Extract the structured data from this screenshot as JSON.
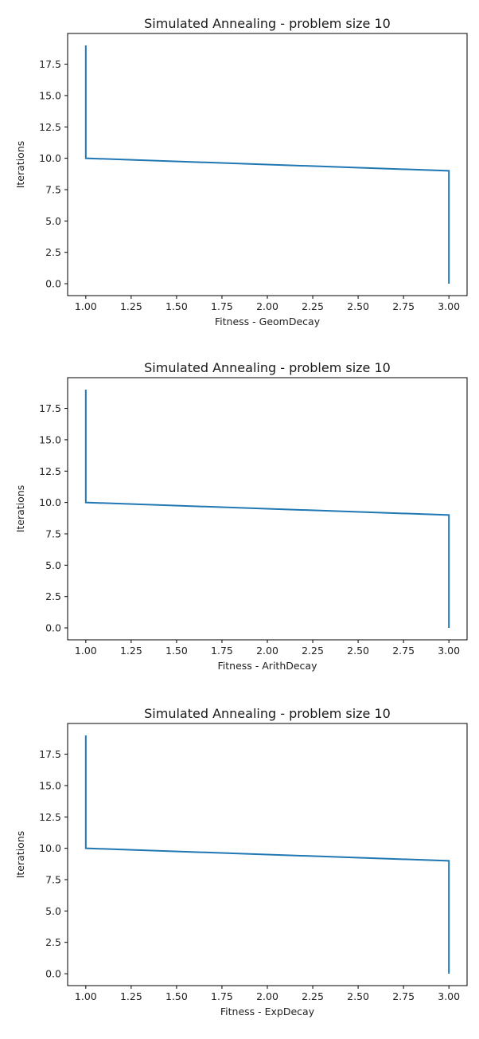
{
  "chart_data": [
    {
      "type": "line",
      "title": "Simulated Annealing - problem size 10",
      "xlabel": "Fitness - GeomDecay",
      "ylabel": "Iterations",
      "xlim": [
        0.9,
        3.1
      ],
      "ylim": [
        -0.95,
        19.95
      ],
      "xticks": [
        "1.00",
        "1.25",
        "1.50",
        "1.75",
        "2.00",
        "2.25",
        "2.50",
        "2.75",
        "3.00"
      ],
      "yticks": [
        "0.0",
        "2.5",
        "5.0",
        "7.5",
        "10.0",
        "12.5",
        "15.0",
        "17.5"
      ],
      "grid": false,
      "series": [
        {
          "color": "#1f77b4",
          "x": [
            3.0,
            3.0,
            1.0,
            1.0
          ],
          "y": [
            0,
            9,
            10,
            19
          ]
        }
      ]
    },
    {
      "type": "line",
      "title": "Simulated Annealing - problem size 10",
      "xlabel": "Fitness - ArithDecay",
      "ylabel": "Iterations",
      "xlim": [
        0.9,
        3.1
      ],
      "ylim": [
        -0.95,
        19.95
      ],
      "xticks": [
        "1.00",
        "1.25",
        "1.50",
        "1.75",
        "2.00",
        "2.25",
        "2.50",
        "2.75",
        "3.00"
      ],
      "yticks": [
        "0.0",
        "2.5",
        "5.0",
        "7.5",
        "10.0",
        "12.5",
        "15.0",
        "17.5"
      ],
      "grid": false,
      "series": [
        {
          "color": "#1f77b4",
          "x": [
            3.0,
            3.0,
            1.0,
            1.0
          ],
          "y": [
            0,
            9,
            10,
            19
          ]
        }
      ]
    },
    {
      "type": "line",
      "title": "Simulated Annealing - problem size 10",
      "xlabel": "Fitness - ExpDecay",
      "ylabel": "Iterations",
      "xlim": [
        0.9,
        3.1
      ],
      "ylim": [
        -0.95,
        19.95
      ],
      "xticks": [
        "1.00",
        "1.25",
        "1.50",
        "1.75",
        "2.00",
        "2.25",
        "2.50",
        "2.75",
        "3.00"
      ],
      "yticks": [
        "0.0",
        "2.5",
        "5.0",
        "7.5",
        "10.0",
        "12.5",
        "15.0",
        "17.5"
      ],
      "grid": false,
      "series": [
        {
          "color": "#1f77b4",
          "x": [
            3.0,
            3.0,
            1.0,
            1.0
          ],
          "y": [
            0,
            9,
            10,
            19
          ]
        }
      ]
    }
  ]
}
